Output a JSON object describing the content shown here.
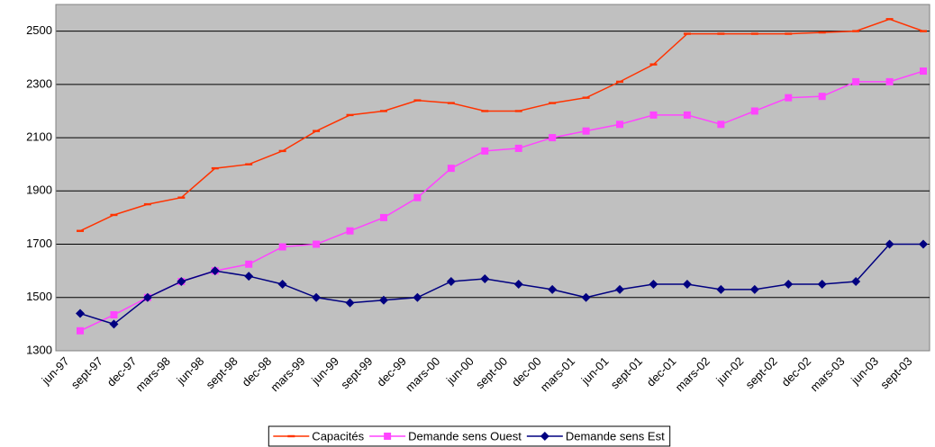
{
  "chart_data": {
    "type": "line",
    "categories": [
      "jun-97",
      "sept-97",
      "dec-97",
      "mars-98",
      "jun-98",
      "sept-98",
      "dec-98",
      "mars-99",
      "jun-99",
      "sept-99",
      "dec-99",
      "mars-00",
      "jun-00",
      "sept-00",
      "dec-00",
      "mars-01",
      "jun-01",
      "sept-01",
      "dec-01",
      "mars-02",
      "jun-02",
      "sept-02",
      "dec-02",
      "mars-03",
      "jun-03",
      "sept-03"
    ],
    "series": [
      {
        "name": "Capacités",
        "color": "#ff3300",
        "marker": "dash",
        "values": [
          1750,
          1810,
          1850,
          1875,
          1985,
          2000,
          2050,
          2125,
          2185,
          2200,
          2240,
          2230,
          2200,
          2200,
          2230,
          2250,
          2310,
          2375,
          2490,
          2490,
          2490,
          2490,
          2495,
          2500,
          2545,
          2500
        ]
      },
      {
        "name": "Demande sens Ouest",
        "color": "#ff44ff",
        "marker": "square",
        "values": [
          1375,
          1435,
          1500,
          1560,
          1600,
          1625,
          1690,
          1700,
          1750,
          1800,
          1875,
          1985,
          2050,
          2060,
          2100,
          2125,
          2150,
          2185,
          2185,
          2150,
          2200,
          2250,
          2255,
          2310,
          2310,
          2350
        ]
      },
      {
        "name": "Demande sens Est",
        "color": "#000080",
        "marker": "diamond",
        "values": [
          1440,
          1400,
          1500,
          1560,
          1600,
          1580,
          1550,
          1500,
          1480,
          1490,
          1500,
          1560,
          1570,
          1550,
          1530,
          1500,
          1530,
          1550,
          1550,
          1530,
          1530,
          1550,
          1550,
          1560,
          1700,
          1700
        ]
      }
    ],
    "ylim": [
      1300,
      2600
    ],
    "yticks": [
      1300,
      1500,
      1700,
      1900,
      2100,
      2300,
      2500
    ],
    "grid": true,
    "legend": "bottom"
  }
}
